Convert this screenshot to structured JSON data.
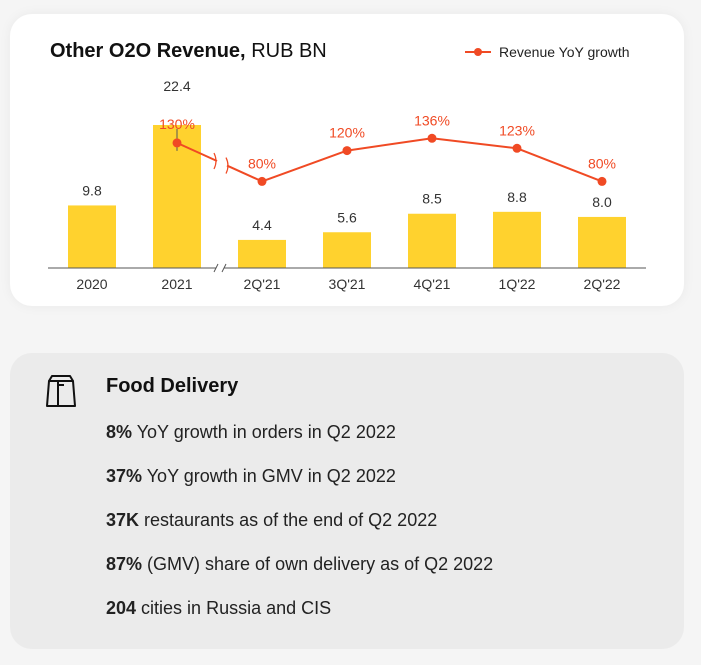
{
  "chart_card": {
    "title_bold": "Other O2O Revenue,",
    "title_unit": "RUB BN",
    "legend_label": "Revenue YoY growth"
  },
  "chart_data": {
    "type": "bar",
    "title": "Other O2O Revenue, RUB BN",
    "categories": [
      "2020",
      "2021",
      "2Q'21",
      "3Q'21",
      "4Q'21",
      "1Q'22",
      "2Q'22"
    ],
    "series": [
      {
        "name": "Revenue",
        "values": [
          9.8,
          22.4,
          4.4,
          5.6,
          8.5,
          8.8,
          8.0
        ],
        "labels": [
          "9.8",
          "22.4",
          "4.4",
          "5.6",
          "8.5",
          "8.8",
          "8.0"
        ]
      }
    ],
    "line_series": {
      "name": "Revenue YoY growth",
      "points": [
        {
          "category": "2021",
          "value": 130,
          "label": "130%"
        },
        {
          "category": "2Q'21",
          "value": 80,
          "label": "80%"
        },
        {
          "category": "3Q'21",
          "value": 120,
          "label": "120%"
        },
        {
          "category": "4Q'21",
          "value": 136,
          "label": "136%"
        },
        {
          "category": "1Q'22",
          "value": 123,
          "label": "123%"
        },
        {
          "category": "2Q'22",
          "value": 80,
          "label": "80%"
        }
      ]
    },
    "ylim": [
      0,
      22.4
    ],
    "axis_break_after": "2021",
    "colors": {
      "bar": "#ffd22e",
      "line": "#f04a24"
    }
  },
  "food_delivery": {
    "icon": "bag-icon",
    "title": "Food Delivery",
    "items": [
      {
        "bold": "8%",
        "text": " YoY growth in orders in Q2 2022"
      },
      {
        "bold": "37%",
        "text": " YoY growth in GMV in Q2 2022"
      },
      {
        "bold": "37K",
        "text": " restaurants as of the end of Q2 2022"
      },
      {
        "bold": "87%",
        "text": " (GMV) share of own delivery as of Q2 2022"
      },
      {
        "bold": "204",
        "text": " cities in Russia and CIS"
      }
    ]
  }
}
